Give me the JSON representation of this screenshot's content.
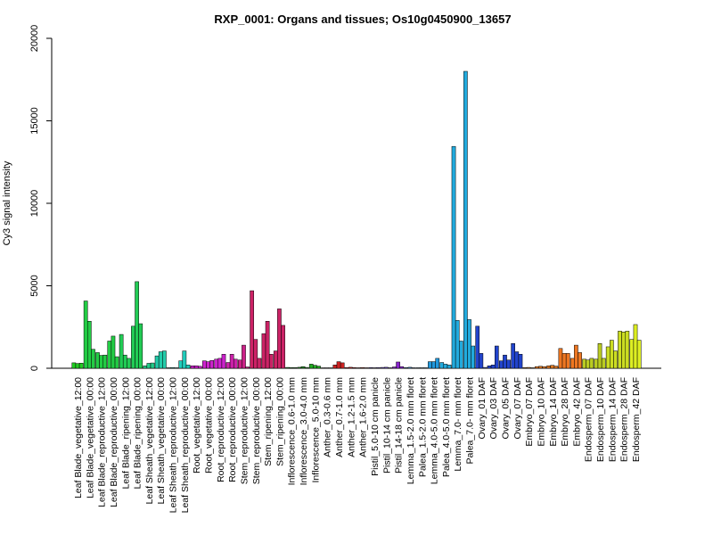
{
  "chart_data": {
    "type": "bar",
    "title": "RXP_0001: Organs and tissues; Os10g0450900_13657",
    "xlabel": "",
    "ylabel": "Cy3 signal intensity",
    "ylim": [
      0,
      20000
    ],
    "yticks": [
      "0",
      "5000",
      "10000",
      "15000",
      "20000"
    ],
    "grid": false,
    "legend": "none",
    "groups": [
      {
        "label": "Leaf Blade_vegetative_12:00",
        "color": "#22cc22",
        "values": [
          330,
          290,
          310
        ]
      },
      {
        "label": "Leaf Blade_vegetative_00:00",
        "color": "#22cc44",
        "values": [
          4080,
          2850,
          1150
        ]
      },
      {
        "label": "Leaf Blade_reproductive_12:00",
        "color": "#22cc44",
        "values": [
          950,
          780,
          800
        ]
      },
      {
        "label": "Leaf Blade_reproductive_00:00",
        "color": "#22cc44",
        "values": [
          1650,
          1950,
          700
        ]
      },
      {
        "label": "Leaf Blade_ripening_12:00",
        "color": "#22cc55",
        "values": [
          2050,
          800,
          600
        ]
      },
      {
        "label": "Leaf Blade_ripening_00:00",
        "color": "#22cc55",
        "values": [
          2550,
          5250,
          2700
        ]
      },
      {
        "label": "Leaf Sheath_vegetative_12:00",
        "color": "#22cc88",
        "values": [
          150,
          300,
          320
        ]
      },
      {
        "label": "Leaf Sheath_vegetative_00:00",
        "color": "#22ccaa",
        "values": [
          750,
          1000,
          1050
        ]
      },
      {
        "label": "Leaf Sheath_reproductive_12:00",
        "color": "#22ccbb",
        "values": [
          30,
          40,
          30
        ]
      },
      {
        "label": "Leaf Sheath_reproductive_00:00",
        "color": "#22ccbb",
        "values": [
          450,
          1050,
          200
        ]
      },
      {
        "label": "Root_vegetative_12:00",
        "color": "#cc22cc",
        "values": [
          150,
          150,
          120
        ]
      },
      {
        "label": "Root_vegetative_00:00",
        "color": "#cc22cc",
        "values": [
          450,
          400,
          470
        ]
      },
      {
        "label": "Root_reproductive_12:00",
        "color": "#cc22cc",
        "values": [
          550,
          600,
          850
        ]
      },
      {
        "label": "Root_reproductive_00:00",
        "color": "#cc22aa",
        "values": [
          350,
          850,
          550
        ]
      },
      {
        "label": "Stem_reproductive_12:00",
        "color": "#cc2288",
        "values": [
          500,
          1400,
          80
        ]
      },
      {
        "label": "Stem_reproductive_00:00",
        "color": "#cc2266",
        "values": [
          4700,
          1750,
          600
        ]
      },
      {
        "label": "Stem_ripening_12:00",
        "color": "#cc2266",
        "values": [
          2100,
          2850,
          850
        ]
      },
      {
        "label": "Stem_ripening_00:00",
        "color": "#cc2266",
        "values": [
          1050,
          3600,
          2600
        ]
      },
      {
        "label": "Inflorescence_0.6-1.0 mm",
        "color": "#228822",
        "values": [
          50,
          40,
          40
        ]
      },
      {
        "label": "Inflorescence_3.0-4.0 mm",
        "color": "#228822",
        "values": [
          60,
          100,
          50
        ]
      },
      {
        "label": "Inflorescence_5.0-10 mm",
        "color": "#22aa22",
        "values": [
          250,
          180,
          130
        ]
      },
      {
        "label": "Anther_0.3-0.6 mm",
        "color": "#cc2222",
        "values": [
          20,
          20,
          20
        ]
      },
      {
        "label": "Anther_0.7-1.0 mm",
        "color": "#cc2222",
        "values": [
          200,
          400,
          330
        ]
      },
      {
        "label": "Anther_1.2-1.5 mm",
        "color": "#cc2222",
        "values": [
          40,
          60,
          40
        ]
      },
      {
        "label": "Anther_1.6-2.0 mm",
        "color": "#cc3322",
        "values": [
          30,
          40,
          30
        ]
      },
      {
        "label": "Pistil_5.0-10 cm panicle",
        "color": "#6644cc",
        "values": [
          40,
          30,
          40
        ]
      },
      {
        "label": "Pistil_10-14 cm panicle",
        "color": "#6644cc",
        "values": [
          50,
          60,
          30
        ]
      },
      {
        "label": "Pistil_14-18 cm panicle",
        "color": "#8822cc",
        "values": [
          80,
          380,
          100
        ]
      },
      {
        "label": "Lemma_1.5-2.0 mm floret",
        "color": "#4488cc",
        "values": [
          40,
          60,
          30
        ]
      },
      {
        "label": "Palea_1.5-2.0 mm floret",
        "color": "#4488cc",
        "values": [
          30,
          30,
          30
        ]
      },
      {
        "label": "Lemma_4.0-5.0 mm floret",
        "color": "#2299dd",
        "values": [
          400,
          400,
          600
        ]
      },
      {
        "label": "Palea_4.0-5.0 mm floret",
        "color": "#22aadd",
        "values": [
          350,
          250,
          200
        ]
      },
      {
        "label": "Lemma_7.0- mm floret",
        "color": "#22aadd",
        "values": [
          13450,
          2900,
          1650
        ]
      },
      {
        "label": "Palea_7.0- mm floret",
        "color": "#22aadd",
        "values": [
          18000,
          2950,
          1350
        ]
      },
      {
        "label": "Ovary_01 DAF",
        "color": "#2244cc",
        "values": [
          2550,
          900,
          50
        ]
      },
      {
        "label": "Ovary_03 DAF",
        "color": "#2244cc",
        "values": [
          150,
          200,
          1350
        ]
      },
      {
        "label": "Ovary_05 DAF",
        "color": "#2244cc",
        "values": [
          450,
          800,
          500
        ]
      },
      {
        "label": "Ovary_07 DAF",
        "color": "#2244cc",
        "values": [
          1500,
          1000,
          850
        ]
      },
      {
        "label": "Embryo_07 DAF",
        "color": "#cc7722",
        "values": [
          40,
          50,
          30
        ]
      },
      {
        "label": "Embryo_10 DAF",
        "color": "#dd7722",
        "values": [
          100,
          120,
          100
        ]
      },
      {
        "label": "Embryo_14 DAF",
        "color": "#dd7722",
        "values": [
          150,
          180,
          130
        ]
      },
      {
        "label": "Embryo_28 DAF",
        "color": "#ee7722",
        "values": [
          1200,
          900,
          900
        ]
      },
      {
        "label": "Embryo_42 DAF",
        "color": "#ee7722",
        "values": [
          600,
          1400,
          950
        ]
      },
      {
        "label": "Endosperm_07 DAF",
        "color": "#bbcc22",
        "values": [
          550,
          500,
          600
        ]
      },
      {
        "label": "Endosperm_10 DAF",
        "color": "#bbcc22",
        "values": [
          550,
          1500,
          600
        ]
      },
      {
        "label": "Endosperm_14 DAF",
        "color": "#ccdd22",
        "values": [
          1300,
          1700,
          1050
        ]
      },
      {
        "label": "Endosperm_28 DAF",
        "color": "#ccdd22",
        "values": [
          2250,
          2200,
          2250
        ]
      },
      {
        "label": "Endosperm_42 DAF",
        "color": "#ddee22",
        "values": [
          1750,
          2650,
          1700
        ]
      }
    ]
  }
}
